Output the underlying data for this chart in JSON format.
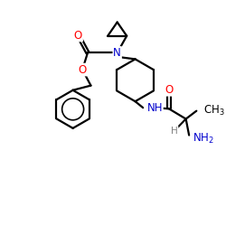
{
  "bg_color": "#ffffff",
  "atom_colors": {
    "C": "#000000",
    "N": "#0000cd",
    "O": "#ff0000",
    "H": "#808080"
  },
  "bond_color": "#000000",
  "bond_lw": 1.6,
  "font_size_label": 8.5,
  "fig_size": [
    2.5,
    2.5
  ],
  "dpi": 100
}
